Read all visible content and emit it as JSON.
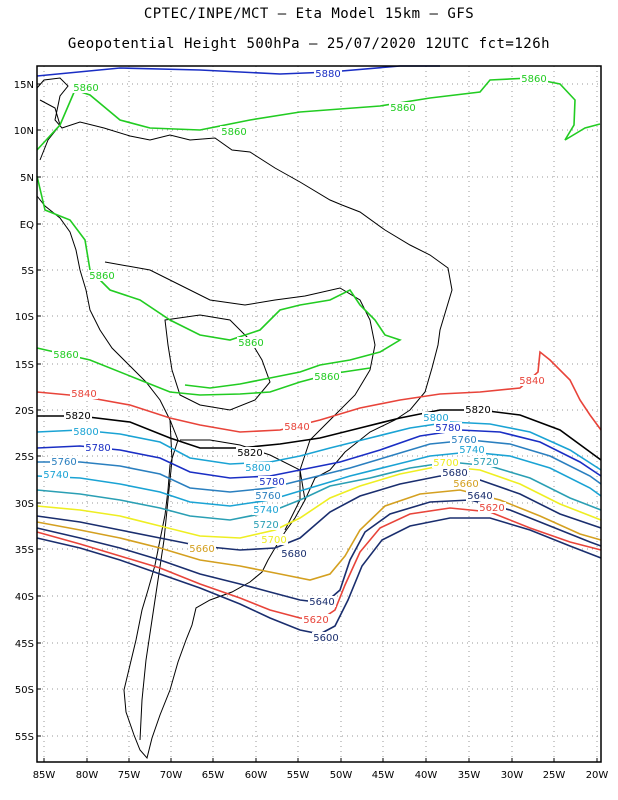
{
  "header": {
    "line1": "CPTEC/INPE/MCT –  Eta Model 15km – GFS",
    "line2": "Geopotential Height 500hPa – 25/07/2020 12UTC fct=126h"
  },
  "axes": {
    "lat_ticks": [
      "15N",
      "10N",
      "5N",
      "EQ",
      "5S",
      "10S",
      "15S",
      "20S",
      "25S",
      "30S",
      "35S",
      "40S",
      "45S",
      "50S",
      "55S"
    ],
    "lon_ticks": [
      "85W",
      "80W",
      "75W",
      "70W",
      "65W",
      "60W",
      "55W",
      "50W",
      "45W",
      "40W",
      "35W",
      "30W",
      "25W",
      "20W"
    ]
  },
  "contour_labels": [
    {
      "text": "5880",
      "color": "#1a2ec4"
    },
    {
      "text": "5860",
      "color": "#22cc22"
    },
    {
      "text": "5860",
      "color": "#22cc22"
    },
    {
      "text": "5860",
      "color": "#22cc22"
    },
    {
      "text": "5860",
      "color": "#22cc22"
    },
    {
      "text": "5860",
      "color": "#22cc22"
    },
    {
      "text": "5860",
      "color": "#22cc22"
    },
    {
      "text": "5860",
      "color": "#22cc22"
    },
    {
      "text": "5860",
      "color": "#22cc22"
    },
    {
      "text": "5840",
      "color": "#e8443a"
    },
    {
      "text": "5840",
      "color": "#e8443a"
    },
    {
      "text": "5840",
      "color": "#e8443a"
    },
    {
      "text": "5820",
      "color": "#000000"
    },
    {
      "text": "5820",
      "color": "#000000"
    },
    {
      "text": "5820",
      "color": "#000000"
    },
    {
      "text": "5800",
      "color": "#1aa3d4"
    },
    {
      "text": "5800",
      "color": "#1aa3d4"
    },
    {
      "text": "5800",
      "color": "#1aa3d4"
    },
    {
      "text": "5780",
      "color": "#1a2ec4"
    },
    {
      "text": "5780",
      "color": "#1a2ec4"
    },
    {
      "text": "5780",
      "color": "#1a2ec4"
    },
    {
      "text": "5760",
      "color": "#2a7fbf"
    },
    {
      "text": "5760",
      "color": "#2a7fbf"
    },
    {
      "text": "5760",
      "color": "#2a7fbf"
    },
    {
      "text": "5740",
      "color": "#1aa3d4"
    },
    {
      "text": "5740",
      "color": "#1aa3d4"
    },
    {
      "text": "5740",
      "color": "#1aa3d4"
    },
    {
      "text": "5720",
      "color": "#2a9fb4"
    },
    {
      "text": "5720",
      "color": "#2a9fb4"
    },
    {
      "text": "5700",
      "color": "#eeee22"
    },
    {
      "text": "5700",
      "color": "#eeee22"
    },
    {
      "text": "5680",
      "color": "#1a2e6e"
    },
    {
      "text": "5680",
      "color": "#1a2e6e"
    },
    {
      "text": "5660",
      "color": "#d4a020"
    },
    {
      "text": "5660",
      "color": "#d4a020"
    },
    {
      "text": "5640",
      "color": "#1a2e6e"
    },
    {
      "text": "5640",
      "color": "#1a2e6e"
    },
    {
      "text": "5620",
      "color": "#e8443a"
    },
    {
      "text": "5620",
      "color": "#e8443a"
    },
    {
      "text": "5600",
      "color": "#1a2e6e"
    }
  ]
}
